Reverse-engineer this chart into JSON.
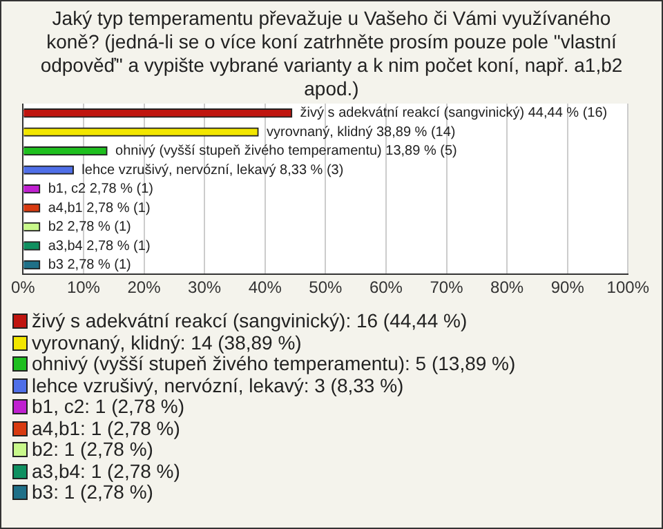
{
  "chart_data": {
    "type": "bar",
    "orientation": "horizontal",
    "title": "Jaký typ temperamentu převažuje u Vašeho či Vámi využívaného koně? (jedná-li se o více koní zatrhněte prosím pouze pole \"vlastní odpověď\" a vypište vybrané varianty a k nim počet koní, např. a1,b2 apod.)",
    "categories": [
      null,
      null,
      null,
      null,
      null,
      null,
      null,
      null,
      null
    ],
    "xlim": [
      0,
      100
    ],
    "xticks": [
      {
        "value": 0,
        "label": "0%"
      },
      {
        "value": 10,
        "label": "10%"
      },
      {
        "value": 20,
        "label": "20%"
      },
      {
        "value": 30,
        "label": "30%"
      },
      {
        "value": 40,
        "label": "40%"
      },
      {
        "value": 50,
        "label": "50%"
      },
      {
        "value": 60,
        "label": "60%"
      },
      {
        "value": 70,
        "label": "70%"
      },
      {
        "value": 80,
        "label": "80%"
      },
      {
        "value": 90,
        "label": "90%"
      },
      {
        "value": 100,
        "label": "100%"
      }
    ],
    "grid": "x",
    "legend": "bottom",
    "series": [
      {
        "name": "živý s adekvátní reakcí (sangvinický): 16 (44,44 %)",
        "color": "#c0150f",
        "values": [
          44.44,
          null,
          null,
          null,
          null,
          null,
          null,
          null,
          null
        ],
        "value_labels": [
          "živý s adekvátní reakcí (sangvinický) 44,44 % (16)",
          null,
          null,
          null,
          null,
          null,
          null,
          null,
          null
        ]
      },
      {
        "name": "vyrovnaný, klidný: 14 (38,89 %)",
        "color": "#f2e600",
        "values": [
          null,
          38.89,
          null,
          null,
          null,
          null,
          null,
          null,
          null
        ],
        "value_labels": [
          null,
          "vyrovnaný, klidný 38,89 % (14)",
          null,
          null,
          null,
          null,
          null,
          null,
          null
        ]
      },
      {
        "name": "ohnivý (vyšší stupeň živého temperamentu): 5 (13,89 %)",
        "color": "#1fbf1f",
        "values": [
          null,
          null,
          13.89,
          null,
          null,
          null,
          null,
          null,
          null
        ],
        "value_labels": [
          null,
          null,
          "ohnivý (vyšší stupeň živého temperamentu) 13,89 % (5)",
          null,
          null,
          null,
          null,
          null,
          null
        ]
      },
      {
        "name": "lehce vzrušivý, nervózní, lekavý: 3 (8,33 %)",
        "color": "#4f6fe8",
        "values": [
          null,
          null,
          null,
          8.33,
          null,
          null,
          null,
          null,
          null
        ],
        "value_labels": [
          null,
          null,
          null,
          "lehce vzrušivý, nervózní, lekavý 8,33 % (3)",
          null,
          null,
          null,
          null,
          null
        ]
      },
      {
        "name": "b1, c2: 1 (2,78 %)",
        "color": "#c020d0",
        "values": [
          null,
          null,
          null,
          null,
          2.78,
          null,
          null,
          null,
          null
        ],
        "value_labels": [
          null,
          null,
          null,
          null,
          "b1, c2 2,78 % (1)",
          null,
          null,
          null,
          null
        ]
      },
      {
        "name": "a4,b1: 1 (2,78 %)",
        "color": "#d83a10",
        "values": [
          null,
          null,
          null,
          null,
          null,
          2.78,
          null,
          null,
          null
        ],
        "value_labels": [
          null,
          null,
          null,
          null,
          null,
          "a4,b1 2,78 % (1)",
          null,
          null,
          null
        ]
      },
      {
        "name": "b2: 1 (2,78 %)",
        "color": "#c8f88a",
        "values": [
          null,
          null,
          null,
          null,
          null,
          null,
          2.78,
          null,
          null
        ],
        "value_labels": [
          null,
          null,
          null,
          null,
          null,
          null,
          "b2 2,78 % (1)",
          null,
          null
        ]
      },
      {
        "name": "a3,b4: 1 (2,78 %)",
        "color": "#0f9060",
        "values": [
          null,
          null,
          null,
          null,
          null,
          null,
          null,
          2.78,
          null
        ],
        "value_labels": [
          null,
          null,
          null,
          null,
          null,
          null,
          null,
          "a3,b4 2,78 % (1)",
          null
        ]
      },
      {
        "name": "b3: 1 (2,78 %)",
        "color": "#1f7088",
        "values": [
          null,
          null,
          null,
          null,
          null,
          null,
          null,
          null,
          2.78
        ],
        "value_labels": [
          null,
          null,
          null,
          null,
          null,
          null,
          null,
          null,
          "b3 2,78 % (1)"
        ]
      }
    ]
  }
}
